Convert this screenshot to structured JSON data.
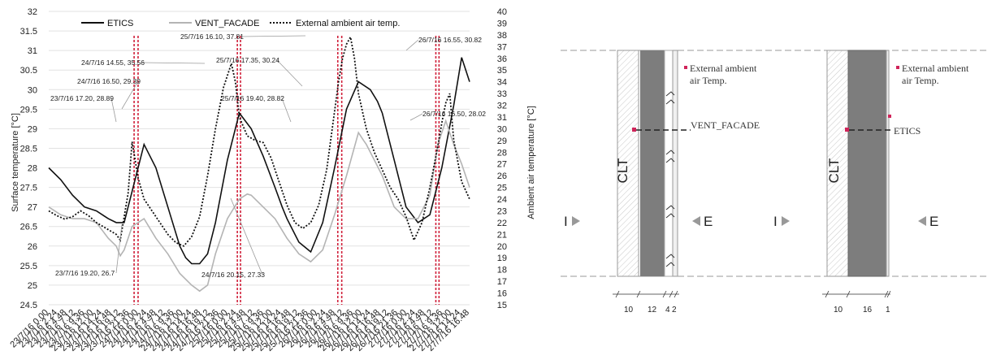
{
  "chart_data": {
    "type": "line",
    "ylabel": "Surface temperature [°C]",
    "y2label": "Ambient air temperature [°C]",
    "ylim": [
      24.5,
      32
    ],
    "y2lim": [
      15,
      40
    ],
    "yticks": [
      "24.5",
      "25",
      "25.5",
      "26",
      "26.5",
      "27",
      "27.5",
      "28",
      "28.5",
      "29",
      "29.5",
      "30",
      "30.5",
      "31",
      "31.5",
      "32"
    ],
    "y2ticks": [
      "15",
      "16",
      "17",
      "18",
      "19",
      "20",
      "21",
      "22",
      "23",
      "24",
      "25",
      "26",
      "27",
      "28",
      "29",
      "30",
      "31",
      "32",
      "33",
      "34",
      "35",
      "36",
      "37",
      "38",
      "39",
      "40"
    ],
    "xticks": [
      "23/7/16 0.00",
      "23/7/16 2.24",
      "23/7/16 4.48",
      "23/7/16 7.12",
      "23/7/16 9.36",
      "23/7/16 12.00",
      "23/7/16 14.24",
      "23/7/16 16.48",
      "23/7/16 19.12",
      "23/7/16 21.36",
      "24/7/16 0.00",
      "24/7/16 2.24",
      "24/7/16 4.48",
      "24/7/16 7.12",
      "24/7/16 9.36",
      "24/7/16 12.00",
      "24/7/16 14.24",
      "24/7/16 16.48",
      "24/7/16 19.12",
      "24/7/16 21.36",
      "25/7/16 0.00",
      "25/7/16 2.24",
      "25/7/16 4.48",
      "25/7/16 7.12",
      "25/7/16 9.36",
      "25/7/16 12.00",
      "25/7/16 14.24",
      "25/7/16 16.48",
      "25/7/16 19.12",
      "25/7/16 21.36",
      "26/7/16 0.00",
      "26/7/16 2.24",
      "26/7/16 4.48",
      "26/7/16 7.12",
      "26/7/16 9.36",
      "26/7/16 12.00",
      "26/7/16 14.24",
      "26/7/16 16.48",
      "26/7/16 19.12",
      "26/7/16 21.36",
      "27/7/16 0.00",
      "27/7/16 2.24",
      "27/7/16 4.48",
      "27/7/16 7.12",
      "27/7/16 9.36",
      "27/7/16 12.00",
      "27/7/16 14.24",
      "27/7/16 16.48"
    ],
    "legend": "top-left",
    "grid": true,
    "series": [
      {
        "name": "ETICS",
        "axis": "left",
        "style": "solid",
        "color": "#111111",
        "x": [
          0,
          3,
          6,
          9,
          12,
          15,
          17,
          19,
          21,
          24,
          27,
          30,
          33,
          34.5,
          36,
          38,
          40,
          42,
          45,
          48,
          51,
          54,
          57,
          58.8,
          60,
          61,
          63,
          66,
          69,
          72,
          75,
          78,
          81,
          82.8,
          84,
          85,
          87,
          90,
          93,
          96,
          99,
          102,
          104,
          106
        ],
        "y": [
          28.0,
          27.7,
          27.3,
          27.0,
          26.9,
          26.7,
          26.6,
          26.6,
          27.4,
          28.6,
          28.0,
          27.0,
          26.0,
          25.7,
          25.55,
          25.55,
          25.8,
          26.6,
          28.2,
          29.4,
          29.0,
          28.3,
          27.5,
          27.0,
          26.7,
          26.5,
          26.1,
          25.85,
          26.6,
          28.0,
          29.5,
          30.2,
          30.0,
          29.7,
          29.4,
          29.0,
          28.2,
          27.0,
          26.6,
          26.8,
          28.0,
          29.6,
          30.82,
          30.2
        ]
      },
      {
        "name": "VENT_FACADE",
        "axis": "left",
        "style": "solid",
        "color": "#b4b4b4",
        "x": [
          0,
          3,
          6,
          9,
          12,
          15,
          17,
          18,
          19,
          21,
          24,
          27,
          30,
          33,
          36,
          38,
          40,
          42,
          45,
          48,
          50,
          51,
          54,
          57,
          60,
          63,
          66,
          69,
          72,
          75,
          78,
          79.3,
          80,
          82,
          84,
          87,
          90,
          93,
          96,
          98,
          100,
          102,
          104,
          106
        ],
        "y": [
          27.0,
          26.8,
          26.7,
          26.7,
          26.6,
          26.2,
          26.0,
          25.75,
          25.9,
          26.5,
          26.7,
          26.2,
          25.8,
          25.3,
          25.0,
          24.85,
          25.0,
          25.8,
          26.7,
          27.2,
          27.33,
          27.3,
          27.0,
          26.7,
          26.2,
          25.8,
          25.6,
          25.9,
          26.8,
          27.8,
          28.9,
          28.7,
          28.6,
          28.2,
          27.8,
          27.0,
          26.7,
          26.7,
          27.3,
          28.6,
          29.2,
          28.6,
          28.1,
          27.5
        ]
      },
      {
        "name": "External ambient air temp.",
        "axis": "right",
        "style": "dotted",
        "color": "#111111",
        "x": [
          0,
          2,
          4,
          6,
          8,
          10,
          12,
          14,
          16,
          17,
          18,
          20,
          21,
          22.5,
          24,
          26,
          28,
          30,
          32,
          34,
          36,
          38,
          40,
          42,
          44,
          46,
          47,
          48,
          50,
          52,
          54,
          56,
          58,
          60,
          62,
          64,
          66,
          68,
          70,
          71.5,
          73,
          74,
          75,
          76,
          77,
          78,
          80,
          82,
          84,
          86,
          88,
          90,
          92,
          94,
          96,
          98,
          99,
          100,
          101,
          102,
          104,
          106
        ],
        "y": [
          23.0,
          22.6,
          22.3,
          22.5,
          23.0,
          22.6,
          22.0,
          21.6,
          21.2,
          21.0,
          20.5,
          24.5,
          28.89,
          25.8,
          24.0,
          23.0,
          22.0,
          21.0,
          20.3,
          20.0,
          20.8,
          22.5,
          26.0,
          30.0,
          33.5,
          35.56,
          34.0,
          31.0,
          29.39,
          29.0,
          28.82,
          27.5,
          25.5,
          23.5,
          22.0,
          21.5,
          22.0,
          23.5,
          26.5,
          30.24,
          34.0,
          36.0,
          37.2,
          37.81,
          36.0,
          33.0,
          30.0,
          28.0,
          26.5,
          25.0,
          24.0,
          22.5,
          20.5,
          22.0,
          25.0,
          28.5,
          30.5,
          32.2,
          33.0,
          29.0,
          25.5,
          24.0
        ]
      }
    ],
    "markers_x": [
      21.5,
      22.5,
      47.5,
      48.3,
      72.8,
      73.8,
      97.5,
      98.3
    ],
    "annotations": [
      {
        "text": "23/7/16 17.20, 28.89"
      },
      {
        "text": "24/7/16 16.50, 29.39"
      },
      {
        "text": "24/7/16 14.55, 35.56"
      },
      {
        "text": "25/7/16 16.10, 37.81"
      },
      {
        "text": "25/7/16 17.35, 30.24"
      },
      {
        "text": "25/7/16 19.40, 28.82"
      },
      {
        "text": "26/7/16 16.55, 30.82"
      },
      {
        "text": "26/7/16 16.50, 28.02"
      },
      {
        "text": "23/7/16 19.20, 26.7"
      },
      {
        "text": "24/7/16 20.15, 27.33"
      }
    ]
  },
  "diagram": {
    "left": {
      "clt_label": "CLT",
      "facade_label": "VENT_FACADE",
      "air_label_1": "External ambient",
      "air_label_2": "air Temp.",
      "inside_label": "I",
      "outside_label": "E",
      "dims": [
        "10",
        "12",
        "4",
        "2"
      ]
    },
    "right": {
      "clt_label": "CLT",
      "facade_label": "ETICS",
      "air_label_1": "External ambient",
      "air_label_2": "air Temp.",
      "inside_label": "I",
      "outside_label": "E",
      "dims": [
        "10",
        "16",
        "1"
      ]
    }
  }
}
